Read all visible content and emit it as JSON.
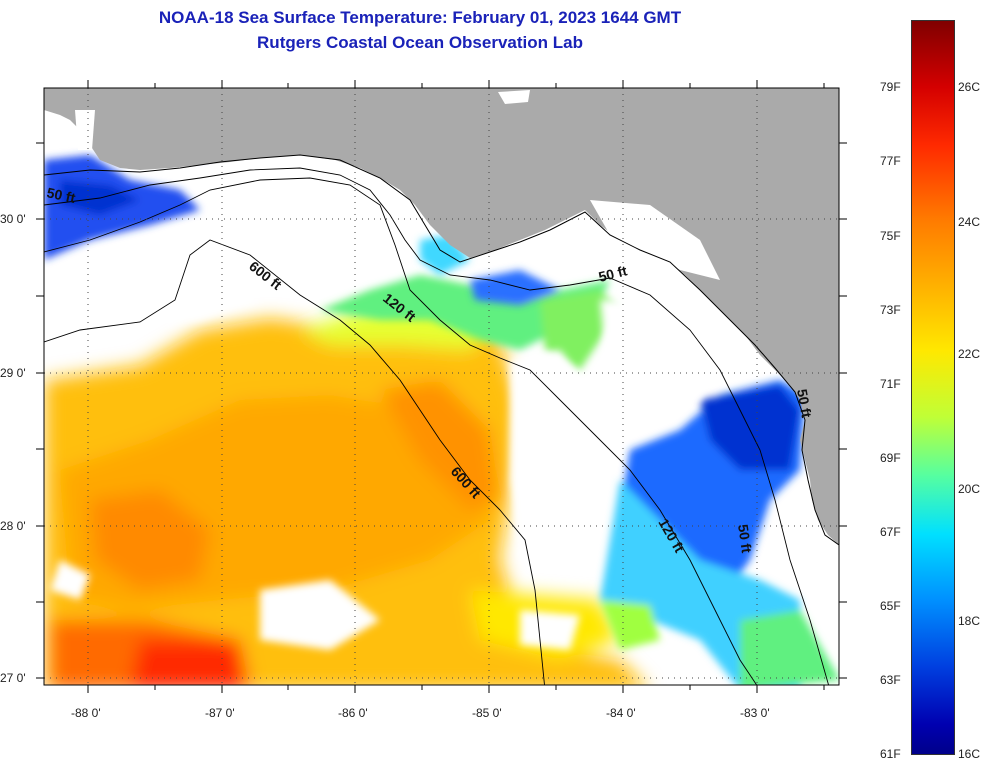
{
  "title": {
    "line1": "NOAA-18 Sea Surface Temperature:  February 01, 2023 1644 GMT",
    "line2": "Rutgers Coastal Ocean Observation Lab"
  },
  "map": {
    "x_labels": [
      "-88 0'",
      "-87 0'",
      "-86 0'",
      "-85 0'",
      "-84 0'",
      "-83 0'"
    ],
    "y_labels": [
      "30 0'",
      "29 0'",
      "28 0'",
      "27 0'"
    ],
    "isobath_labels": [
      "50 ft",
      "600 ft",
      "120 ft",
      "50 ft",
      "600 ft",
      "120 ft",
      "50 ft",
      "50 ft"
    ],
    "colors": {
      "land": "#aaaaaa",
      "cloud": "#ffffff"
    }
  },
  "colorbar": {
    "fahrenheit": [
      "79F",
      "77F",
      "75F",
      "73F",
      "71F",
      "69F",
      "67F",
      "65F",
      "63F",
      "61F"
    ],
    "celsius": [
      "26C",
      "24C",
      "22C",
      "20C",
      "18C",
      "16C"
    ]
  }
}
